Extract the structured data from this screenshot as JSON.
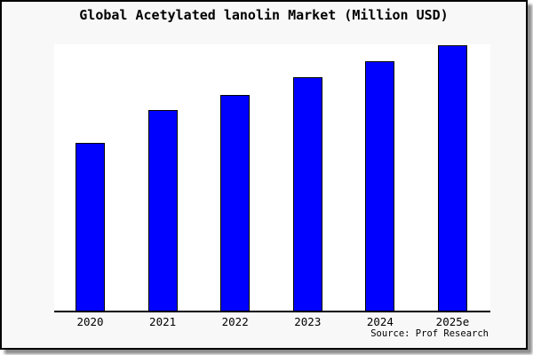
{
  "chart_data": {
    "type": "bar",
    "title": "Global Acetylated lanolin Market (Million USD)",
    "source": "Source: Prof Research",
    "categories": [
      "2020",
      "2021",
      "2022",
      "2023",
      "2024",
      "2025e"
    ],
    "values": [
      189,
      226,
      243,
      263,
      281,
      299
    ],
    "value_labels_shown": false,
    "value_axis_shown": false,
    "xlabel": "",
    "ylabel": "",
    "ylim": [
      0,
      300
    ],
    "grid": false,
    "legend": false
  },
  "colors": {
    "bar_fill": "#0000ff",
    "bar_border": "#000000",
    "plot_background": "#ffffff",
    "frame_background": "#f8f8f8",
    "frame_border": "#000000",
    "text": "#000000"
  }
}
